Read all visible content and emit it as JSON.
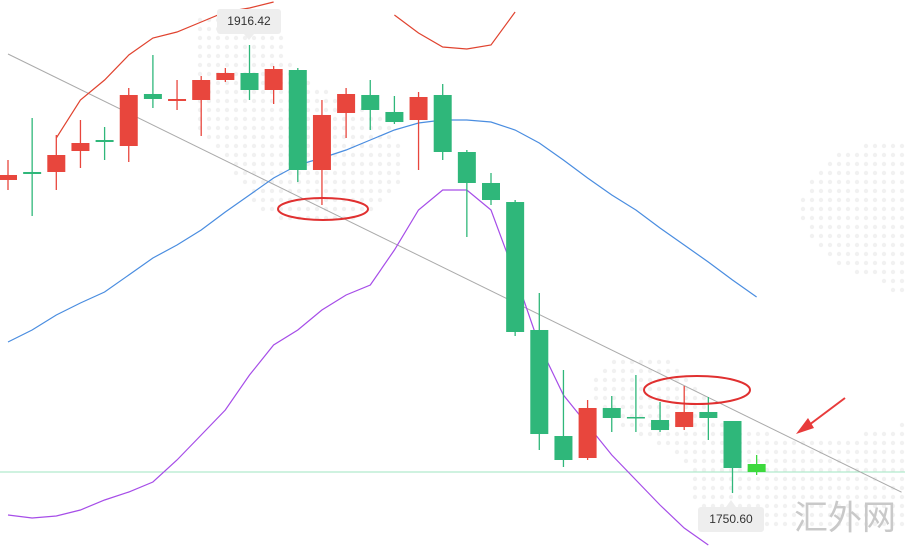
{
  "chart_data": {
    "type": "candlestick",
    "ylim": [
      1729.14,
      1933.08
    ],
    "up_color": "#e8463d",
    "down_color": "#2fb77a",
    "current_color": "#3cd93c",
    "open": [
      1866.46,
      1869.42,
      1869.42,
      1877.19,
      1881.26,
      1879.04,
      1898.29,
      1895.7,
      1896.07,
      1903.47,
      1906.06,
      1899.77,
      1907.17,
      1870.16,
      1891.26,
      1897.92,
      1891.63,
      1888.66,
      1897.92,
      1876.82,
      1865.35,
      1858.31,
      1810.94,
      1771.7,
      1763.56,
      1782.07,
      1778.74,
      1777.63,
      1775.03,
      1780.59,
      1777.26,
      1758.38
    ],
    "close": [
      1868.31,
      1868.68,
      1875.71,
      1880.15,
      1880.52,
      1897.92,
      1896.44,
      1896.44,
      1903.47,
      1906.06,
      1899.77,
      1907.54,
      1870.16,
      1890.52,
      1898.29,
      1892.37,
      1887.92,
      1897.18,
      1876.82,
      1865.35,
      1859.05,
      1810.2,
      1772.44,
      1762.82,
      1782.07,
      1778.37,
      1778.37,
      1773.92,
      1780.59,
      1778.37,
      1759.86,
      1761.34
    ],
    "high": [
      1873.86,
      1889.4,
      1883.11,
      1888.66,
      1886.07,
      1900.51,
      1912.72,
      1903.47,
      1904.95,
      1907.91,
      1916.42,
      1908.65,
      1907.91,
      1896.07,
      1900.51,
      1903.47,
      1897.55,
      1899.03,
      1901.99,
      1877.56,
      1869.05,
      1859.05,
      1824.63,
      1796.13,
      1785.03,
      1786.51,
      1794.28,
      1784.29,
      1790.21,
      1786.14,
      1777.26,
      1764.67
    ],
    "low": [
      1862.76,
      1853.13,
      1862.76,
      1870.9,
      1873.86,
      1873.12,
      1893.11,
      1892.37,
      1882.74,
      1902.73,
      1896.07,
      1894.59,
      1865.72,
      1857.2,
      1882.0,
      1884.96,
      1887.18,
      1870.16,
      1873.86,
      1845.36,
      1857.2,
      1808.72,
      1766.52,
      1760.23,
      1762.82,
      1773.18,
      1773.18,
      1773.18,
      1773.92,
      1770.22,
      1750.6,
      1757.27
    ],
    "bands": [
      {
        "color": "#e0432f",
        "values": [
          null,
          null,
          1882.0,
          1896.07,
          1903.47,
          1912.72,
          1919.02,
          1921.24,
          1924.94,
          1928.64,
          1930.12,
          1932.34,
          null,
          null,
          null,
          null,
          1927.53,
          1920.87,
          1915.68,
          1914.94,
          1916.42,
          1928.64,
          null,
          null,
          null,
          null,
          null,
          null,
          null,
          null,
          null,
          null
        ]
      },
      {
        "color": "#4a8de0",
        "values": [
          1806.5,
          1810.94,
          1816.49,
          1820.93,
          1825.0,
          1831.29,
          1837.59,
          1842.4,
          1847.95,
          1854.61,
          1860.9,
          1867.2,
          1872.01,
          1874.6,
          1877.56,
          1881.26,
          1884.96,
          1887.55,
          1888.66,
          1888.66,
          1887.92,
          1884.96,
          1880.15,
          1873.86,
          1867.2,
          1860.9,
          1855.35,
          1848.69,
          1842.4,
          1836.11,
          1829.44,
          1823.15
        ]
      },
      {
        "color": "#a64de8",
        "values": [
          1742.46,
          1741.35,
          1742.09,
          1744.31,
          1748.01,
          1750.98,
          1754.68,
          1762.82,
          1772.07,
          1781.33,
          1794.28,
          1805.39,
          1810.94,
          1818.34,
          1823.89,
          1827.59,
          1840.55,
          1855.35,
          1862.76,
          1862.76,
          1855.35,
          1831.29,
          1805.39,
          1786.88,
          1775.77,
          1764.67,
          1755.42,
          1746.16,
          1737.65,
          1731.36,
          null,
          null
        ]
      }
    ],
    "trendline": {
      "color": "#aaaaaa",
      "start": [
        0,
        1913.09
      ],
      "end": [
        37,
        1750.9
      ]
    },
    "current_price": 1758.38,
    "current_line_color": "#9fe6c0",
    "annotations": [
      "1916.42",
      "1750.60"
    ],
    "watermark": "汇外网"
  }
}
